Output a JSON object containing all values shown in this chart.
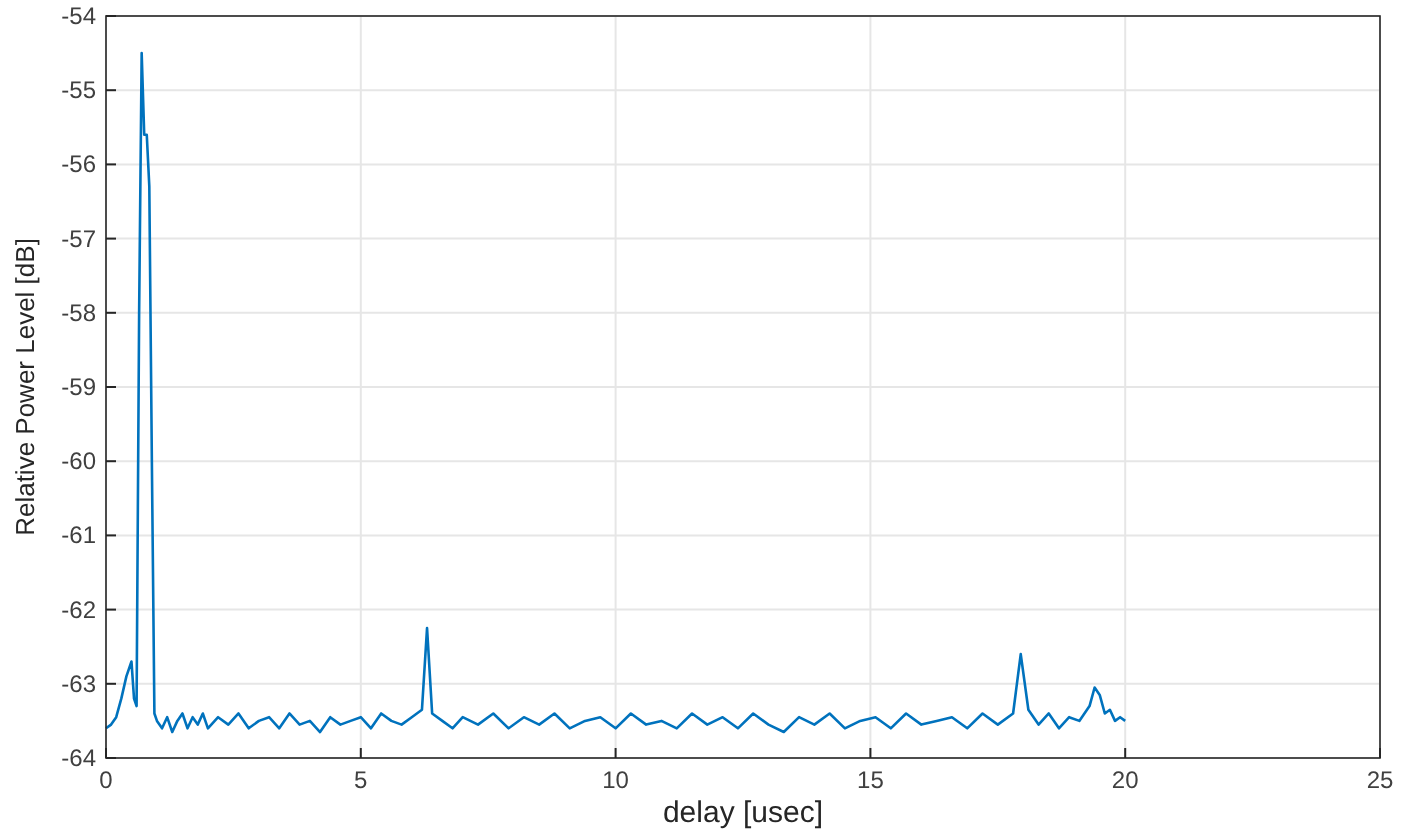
{
  "chart_data": {
    "type": "line",
    "xlabel": "delay [usec]",
    "ylabel": "Relative Power Level [dB]",
    "xlim": [
      0,
      25
    ],
    "xticks": [
      0,
      5,
      10,
      15,
      20,
      25
    ],
    "ylim": [
      -64,
      -54
    ],
    "yticks": [
      -64,
      -63,
      -62,
      -61,
      -60,
      -59,
      -58,
      -57,
      -56,
      -55,
      -54
    ],
    "grid": true,
    "series": [
      {
        "color": "#0072bd",
        "x": [
          0,
          0.1,
          0.2,
          0.3,
          0.4,
          0.5,
          0.55,
          0.6,
          0.65,
          0.7,
          0.75,
          0.8,
          0.85,
          0.9,
          0.95,
          1.0,
          1.1,
          1.2,
          1.3,
          1.4,
          1.5,
          1.6,
          1.7,
          1.8,
          1.9,
          2.0,
          2.2,
          2.4,
          2.6,
          2.8,
          3.0,
          3.2,
          3.4,
          3.6,
          3.8,
          4.0,
          4.2,
          4.4,
          4.6,
          4.8,
          5.0,
          5.2,
          5.4,
          5.6,
          5.8,
          6.0,
          6.2,
          6.3,
          6.4,
          6.6,
          6.8,
          7.0,
          7.3,
          7.6,
          7.9,
          8.2,
          8.5,
          8.8,
          9.1,
          9.4,
          9.7,
          10.0,
          10.3,
          10.6,
          10.9,
          11.2,
          11.5,
          11.8,
          12.1,
          12.4,
          12.7,
          13.0,
          13.3,
          13.6,
          13.9,
          14.2,
          14.5,
          14.8,
          15.1,
          15.4,
          15.7,
          16.0,
          16.3,
          16.6,
          16.9,
          17.2,
          17.5,
          17.8,
          17.95,
          18.1,
          18.3,
          18.5,
          18.7,
          18.9,
          19.1,
          19.3,
          19.4,
          19.5,
          19.6,
          19.7,
          19.8,
          19.9,
          20.0
        ],
        "values": [
          -63.6,
          -63.55,
          -63.45,
          -63.2,
          -62.9,
          -62.7,
          -63.2,
          -63.3,
          -58,
          -54.5,
          -55.6,
          -55.6,
          -56.3,
          -60,
          -63.4,
          -63.5,
          -63.6,
          -63.45,
          -63.65,
          -63.5,
          -63.4,
          -63.6,
          -63.45,
          -63.55,
          -63.4,
          -63.6,
          -63.45,
          -63.55,
          -63.4,
          -63.6,
          -63.5,
          -63.45,
          -63.6,
          -63.4,
          -63.55,
          -63.5,
          -63.65,
          -63.45,
          -63.55,
          -63.5,
          -63.45,
          -63.6,
          -63.4,
          -63.5,
          -63.55,
          -63.45,
          -63.35,
          -62.25,
          -63.4,
          -63.5,
          -63.6,
          -63.45,
          -63.55,
          -63.4,
          -63.6,
          -63.45,
          -63.55,
          -63.4,
          -63.6,
          -63.5,
          -63.45,
          -63.6,
          -63.4,
          -63.55,
          -63.5,
          -63.6,
          -63.4,
          -63.55,
          -63.45,
          -63.6,
          -63.4,
          -63.55,
          -63.65,
          -63.45,
          -63.55,
          -63.4,
          -63.6,
          -63.5,
          -63.45,
          -63.6,
          -63.4,
          -63.55,
          -63.5,
          -63.45,
          -63.6,
          -63.4,
          -63.55,
          -63.4,
          -62.6,
          -63.35,
          -63.55,
          -63.4,
          -63.6,
          -63.45,
          -63.5,
          -63.3,
          -63.05,
          -63.15,
          -63.4,
          -63.35,
          -63.5,
          -63.45,
          -63.5
        ]
      }
    ]
  }
}
